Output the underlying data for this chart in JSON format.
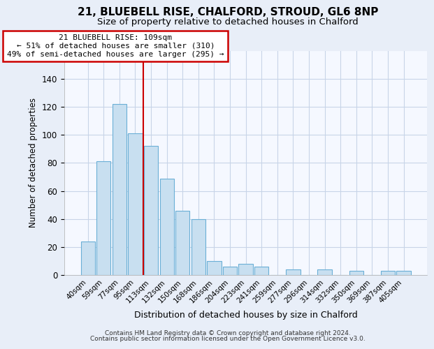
{
  "title1": "21, BLUEBELL RISE, CHALFORD, STROUD, GL6 8NP",
  "title2": "Size of property relative to detached houses in Chalford",
  "xlabel": "Distribution of detached houses by size in Chalford",
  "ylabel": "Number of detached properties",
  "bar_labels": [
    "40sqm",
    "59sqm",
    "77sqm",
    "95sqm",
    "113sqm",
    "132sqm",
    "150sqm",
    "168sqm",
    "186sqm",
    "204sqm",
    "223sqm",
    "241sqm",
    "259sqm",
    "277sqm",
    "296sqm",
    "314sqm",
    "332sqm",
    "350sqm",
    "369sqm",
    "387sqm",
    "405sqm"
  ],
  "bar_values": [
    24,
    81,
    122,
    101,
    92,
    69,
    46,
    40,
    10,
    6,
    8,
    6,
    0,
    4,
    0,
    4,
    0,
    3,
    0,
    3,
    3
  ],
  "bar_color": "#c8dff0",
  "bar_edge_color": "#6aafd6",
  "vline_color": "#cc0000",
  "annotation_title": "21 BLUEBELL RISE: 109sqm",
  "annotation_line1": "← 51% of detached houses are smaller (310)",
  "annotation_line2": "49% of semi-detached houses are larger (295) →",
  "annotation_box_color": "#ffffff",
  "annotation_border_color": "#cc0000",
  "ylim": [
    0,
    160
  ],
  "footer1": "Contains HM Land Registry data © Crown copyright and database right 2024.",
  "footer2": "Contains public sector information licensed under the Open Government Licence v3.0.",
  "bg_color": "#e8eef8",
  "plot_bg_color": "#f5f8ff",
  "grid_color": "#c8d4e8",
  "title1_fontsize": 11,
  "title2_fontsize": 9.5
}
